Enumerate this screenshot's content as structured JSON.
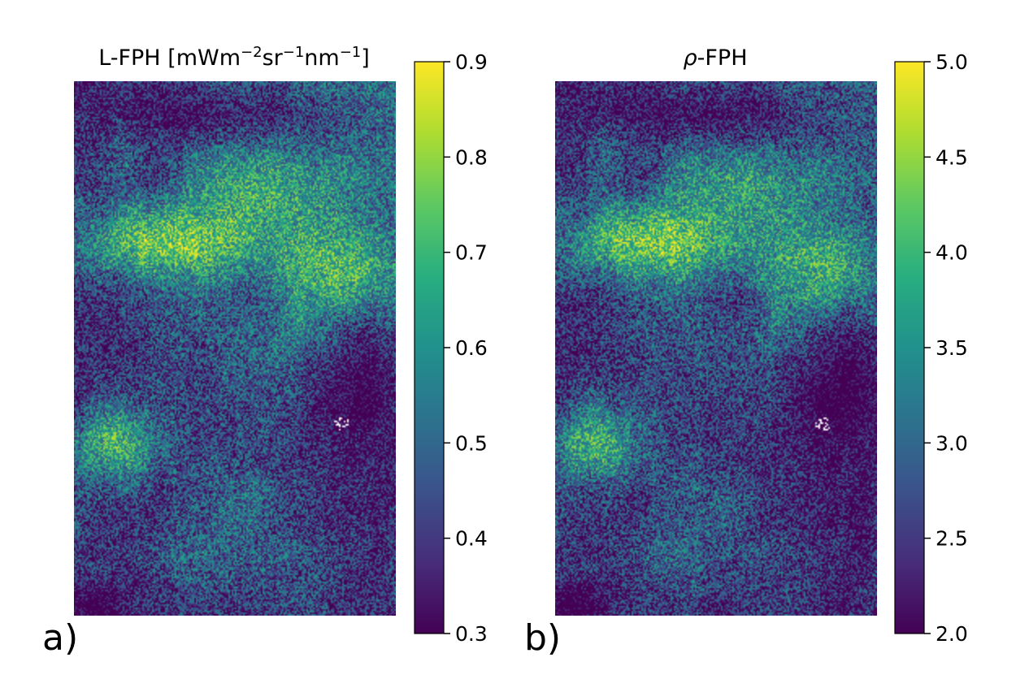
{
  "chart_data": [
    {
      "type": "heatmap",
      "panel_label": "a)",
      "title_base": "L-FPH [mWm",
      "title_parts": [
        {
          "text": "L-FPH [mWm",
          "sup": false
        },
        {
          "text": "−2",
          "sup": true
        },
        {
          "text": "sr",
          "sup": false
        },
        {
          "text": "−1",
          "sup": true
        },
        {
          "text": "nm",
          "sup": false
        },
        {
          "text": "−1",
          "sup": true
        },
        {
          "text": "]",
          "sup": false
        }
      ],
      "colormap": "viridis",
      "colorbar": {
        "range": [
          0.3,
          0.9
        ],
        "ticks": [
          0.3,
          0.4,
          0.5,
          0.6,
          0.7,
          0.8,
          0.9
        ],
        "tick_labels": [
          "0.3",
          "0.4",
          "0.5",
          "0.6",
          "0.7",
          "0.8",
          "0.9"
        ]
      },
      "axes_visible": false,
      "grid": false
    },
    {
      "type": "heatmap",
      "panel_label": "b)",
      "title_parts": [
        {
          "text": "ρ",
          "sup": false,
          "italic": true
        },
        {
          "text": "-FPH",
          "sup": false
        }
      ],
      "colormap": "viridis",
      "colorbar": {
        "range": [
          2.0,
          5.0
        ],
        "ticks": [
          2.0,
          2.5,
          3.0,
          3.5,
          4.0,
          4.5,
          5.0
        ],
        "tick_labels": [
          "2.0",
          "2.5",
          "3.0",
          "3.5",
          "4.0",
          "4.5",
          "5.0"
        ]
      },
      "axes_visible": false,
      "grid": false
    }
  ]
}
